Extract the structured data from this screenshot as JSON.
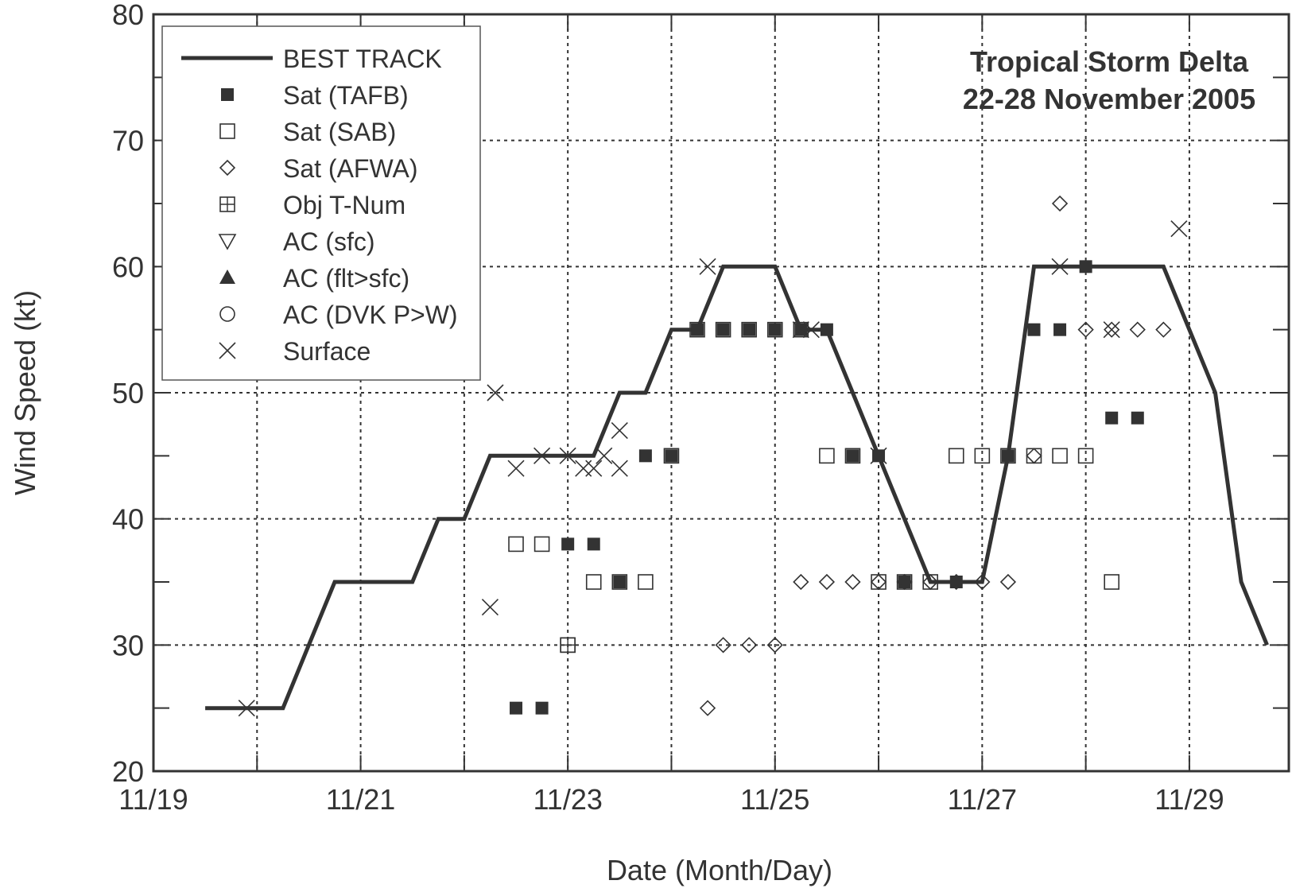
{
  "chart_data": {
    "type": "scatter",
    "title": "Tropical Storm Delta",
    "subtitle": "22-28 November 2005",
    "xlabel": "Date (Month/Day)",
    "ylabel": "Wind Speed (kt)",
    "xlim": [
      19.0,
      29.96
    ],
    "ylim": [
      20,
      80
    ],
    "x_ticks": [
      {
        "value": 19,
        "label": "11/19"
      },
      {
        "value": 21,
        "label": "11/21"
      },
      {
        "value": 23,
        "label": "11/23"
      },
      {
        "value": 25,
        "label": "11/25"
      },
      {
        "value": 27,
        "label": "11/27"
      },
      {
        "value": 29,
        "label": "11/29"
      }
    ],
    "x_grid": [
      20,
      21,
      22,
      23,
      24,
      25,
      26,
      27,
      28,
      29
    ],
    "y_ticks": [
      20,
      30,
      40,
      50,
      60,
      70,
      80
    ],
    "y_grid": [
      30,
      40,
      50,
      60,
      70
    ],
    "grid": "dotted",
    "legend_position": "top-left",
    "x_unit_note": "x values are November day-of-month (e.g. 23.5 = 11/23 12Z)",
    "series": [
      {
        "name": "BEST TRACK",
        "marker": "line",
        "x": [
          19.5,
          19.75,
          20,
          20.25,
          20.5,
          20.75,
          21,
          21.25,
          21.5,
          21.75,
          22,
          22.25,
          22.5,
          22.75,
          23,
          23.25,
          23.5,
          23.75,
          24,
          24.25,
          24.5,
          24.75,
          25,
          25.25,
          25.5,
          25.75,
          26,
          26.25,
          26.5,
          26.75,
          27,
          27.25,
          27.5,
          27.75,
          28,
          28.25,
          28.5,
          28.75,
          29,
          29.25,
          29.5,
          29.75
        ],
        "y": [
          25,
          25,
          25,
          25,
          30,
          35,
          35,
          35,
          35,
          40,
          40,
          45,
          45,
          45,
          45,
          45,
          50,
          50,
          55,
          55,
          60,
          60,
          60,
          55,
          55,
          50,
          45,
          40,
          35,
          35,
          35,
          45,
          60,
          60,
          60,
          60,
          60,
          60,
          55,
          50,
          35,
          30
        ]
      },
      {
        "name": "Sat (TAFB)",
        "marker": "filled-square",
        "x": [
          22.5,
          22.75,
          23.0,
          23.25,
          23.5,
          23.75,
          24.0,
          24.25,
          24.5,
          24.75,
          25.0,
          25.25,
          25.5,
          25.75,
          26.0,
          26.25,
          26.75,
          27.25,
          27.5,
          27.75,
          28.0,
          28.25,
          28.5
        ],
        "y": [
          25,
          25,
          38,
          38,
          35,
          45,
          45,
          55,
          55,
          55,
          55,
          55,
          55,
          45,
          45,
          35,
          35,
          45,
          55,
          55,
          60,
          48,
          48
        ]
      },
      {
        "name": "Sat (SAB)",
        "marker": "open-square",
        "x": [
          22.5,
          22.75,
          23.0,
          23.25,
          23.5,
          23.75,
          24.0,
          24.25,
          24.5,
          24.75,
          25.0,
          25.25,
          25.5,
          25.75,
          26.0,
          26.25,
          26.5,
          26.75,
          27.0,
          27.25,
          27.5,
          27.75,
          28.0,
          28.25
        ],
        "y": [
          38,
          38,
          30,
          35,
          35,
          35,
          45,
          55,
          55,
          55,
          55,
          55,
          45,
          45,
          35,
          35,
          35,
          45,
          45,
          45,
          45,
          45,
          45,
          35
        ]
      },
      {
        "name": "Sat (AFWA)",
        "marker": "open-diamond",
        "x": [
          24.35,
          24.5,
          24.75,
          25.0,
          25.25,
          25.5,
          25.75,
          26.0,
          26.25,
          26.5,
          26.75,
          27.0,
          27.25,
          27.5,
          27.75,
          28.0,
          28.25,
          28.5,
          28.75
        ],
        "y": [
          25,
          30,
          30,
          30,
          35,
          35,
          35,
          35,
          35,
          35,
          35,
          35,
          35,
          45,
          65,
          55,
          55,
          55,
          55
        ]
      },
      {
        "name": "Obj T-Num",
        "marker": "plus-square",
        "x": [
          23.0
        ],
        "y": [
          30
        ]
      },
      {
        "name": "AC (sfc)",
        "marker": "open-triangle-down",
        "x": [],
        "y": []
      },
      {
        "name": "AC (flt>sfc)",
        "marker": "filled-triangle-up",
        "x": [],
        "y": []
      },
      {
        "name": "AC (DVK P>W)",
        "marker": "open-circle",
        "x": [],
        "y": []
      },
      {
        "name": "Surface",
        "marker": "cross",
        "x": [
          19.9,
          22.25,
          22.3,
          22.5,
          22.75,
          23.0,
          23.15,
          23.25,
          23.35,
          23.5,
          23.5,
          24.35,
          25.25,
          25.35,
          26.0,
          27.75,
          28.25,
          28.9
        ],
        "y": [
          25,
          33,
          50,
          44,
          45,
          45,
          44,
          44,
          45,
          47,
          44,
          60,
          55,
          55,
          45,
          60,
          55,
          63
        ]
      }
    ]
  }
}
